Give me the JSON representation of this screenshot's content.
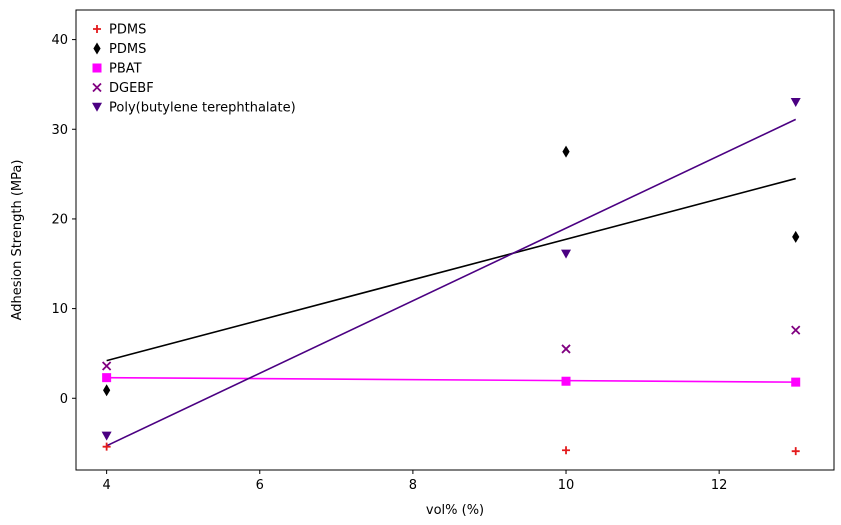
{
  "chart_data": {
    "type": "scatter",
    "xlabel": "vol% (%)",
    "ylabel": "Adhesion Strength (MPa)",
    "xlim": [
      3.6,
      13.5
    ],
    "ylim": [
      -8,
      43.3
    ],
    "x_ticks": [
      4,
      6,
      8,
      10,
      12
    ],
    "y_ticks": [
      0,
      10,
      20,
      30,
      40
    ],
    "grid": false,
    "legend_position": "top-left",
    "series": [
      {
        "name": "PDMS",
        "marker": "plus",
        "color": "#e31a1c",
        "x": [
          4,
          10,
          13
        ],
        "y": [
          -5.4,
          -5.8,
          -5.9
        ]
      },
      {
        "name": "PDMS",
        "marker": "thin-diamond",
        "color": "#000000",
        "x": [
          4,
          10,
          13
        ],
        "y": [
          0.9,
          27.5,
          18.0
        ],
        "fit": {
          "x": [
            4,
            13
          ],
          "y": [
            4.2,
            24.5
          ]
        }
      },
      {
        "name": "PBAT",
        "marker": "square",
        "color": "#ff00ff",
        "x": [
          4,
          10,
          13
        ],
        "y": [
          2.3,
          1.9,
          1.8
        ],
        "fit": {
          "x": [
            4,
            13
          ],
          "y": [
            2.3,
            1.8
          ]
        }
      },
      {
        "name": "DGEBF",
        "marker": "x",
        "color": "#800080",
        "x": [
          4,
          10,
          13
        ],
        "y": [
          3.6,
          5.5,
          7.6
        ]
      },
      {
        "name": "Poly(butylene terephthalate)",
        "marker": "triangle-down",
        "color": "#4b0082",
        "x": [
          4,
          10,
          13
        ],
        "y": [
          -4.2,
          16.1,
          33.0
        ],
        "fit": {
          "x": [
            4,
            13
          ],
          "y": [
            -5.3,
            31.1
          ]
        }
      }
    ]
  }
}
